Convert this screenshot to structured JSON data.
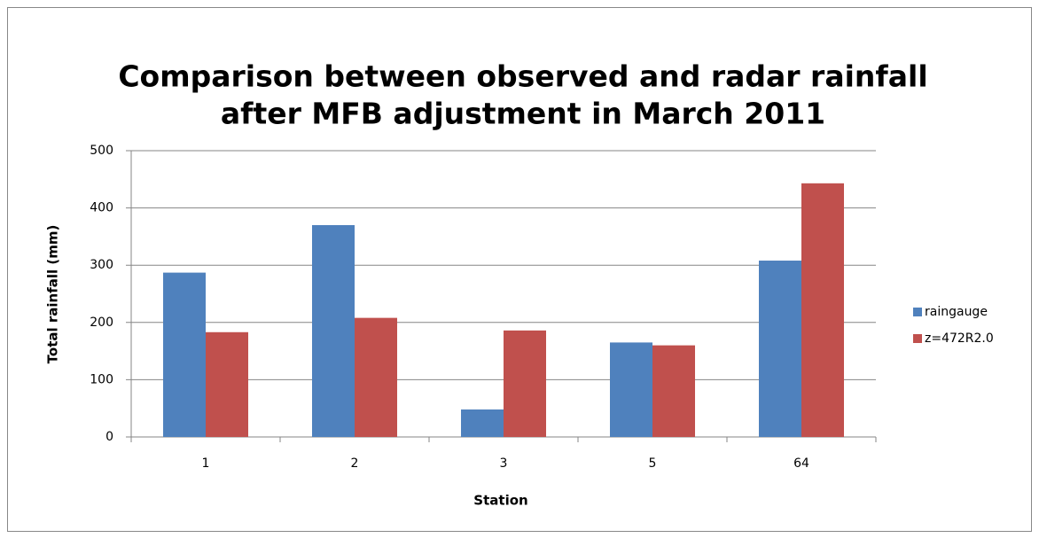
{
  "chart_data": {
    "type": "bar",
    "title": [
      "Comparison between observed and radar rainfall",
      "after MFB adjustment in March 2011"
    ],
    "x_label": "Station",
    "y_label": "Total rainfall (mm)",
    "categories": [
      "1",
      "2",
      "3",
      "5",
      "64"
    ],
    "series": [
      {
        "name": "raingauge",
        "color": "#4f81bd",
        "values": [
          287,
          370,
          48,
          165,
          308
        ]
      },
      {
        "name": "z=472R2.0",
        "color": "#c0504d",
        "values": [
          183,
          208,
          186,
          160,
          443
        ]
      }
    ],
    "ylim": [
      0,
      500
    ],
    "yticks": [
      0,
      100,
      200,
      300,
      400,
      500
    ],
    "grid": true,
    "legend": "right"
  }
}
